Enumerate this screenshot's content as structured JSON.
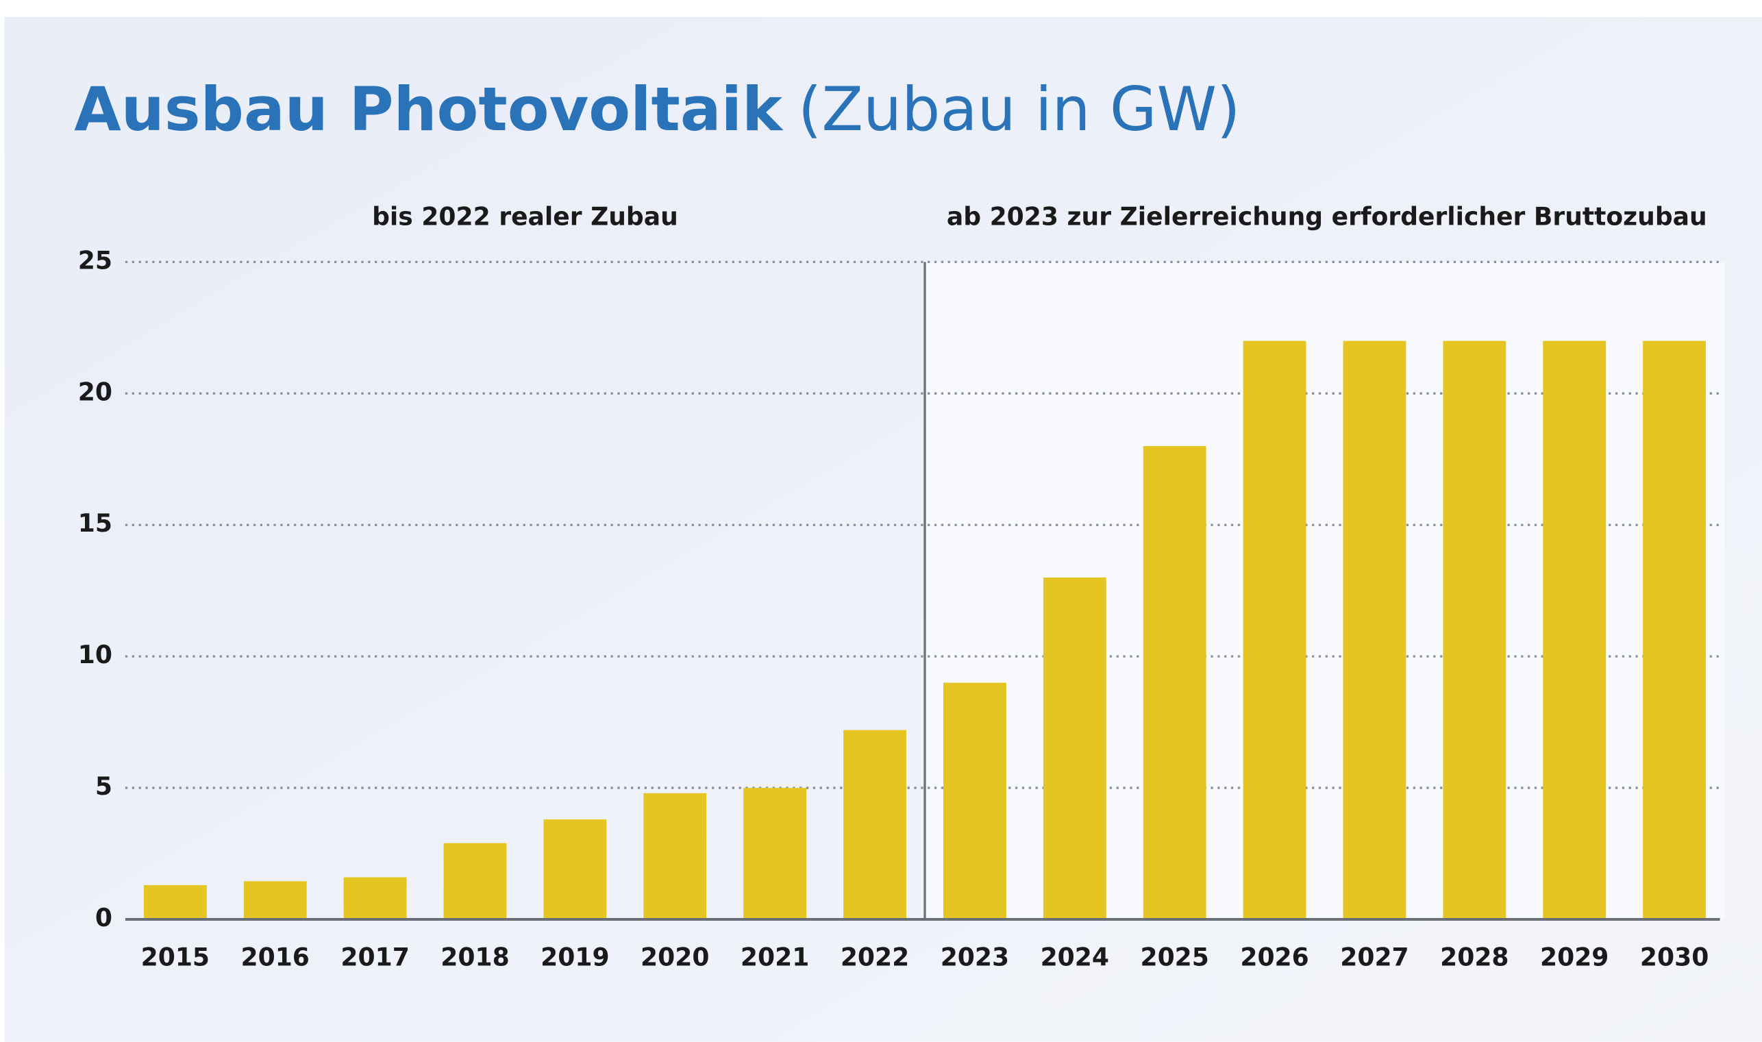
{
  "chart_data": {
    "type": "bar",
    "title": "Ausbau Photovoltaik",
    "subtitle": "(Zubau in GW)",
    "annotations": [
      "bis 2022 realer Zubau",
      "ab 2023 zur Zielerreichung erforderlicher Bruttozubau"
    ],
    "categories": [
      "2015",
      "2016",
      "2017",
      "2018",
      "2019",
      "2020",
      "2021",
      "2022",
      "2023",
      "2024",
      "2025",
      "2026",
      "2027",
      "2028",
      "2029",
      "2030"
    ],
    "values": [
      1.3,
      1.45,
      1.6,
      2.9,
      3.8,
      4.8,
      5.0,
      7.2,
      9,
      13,
      18,
      22,
      22,
      22,
      22,
      22
    ],
    "color": "#e5c521",
    "ylim": [
      0,
      25
    ],
    "yticks": [
      0,
      5,
      10,
      15,
      20,
      25
    ],
    "grid": true
  }
}
